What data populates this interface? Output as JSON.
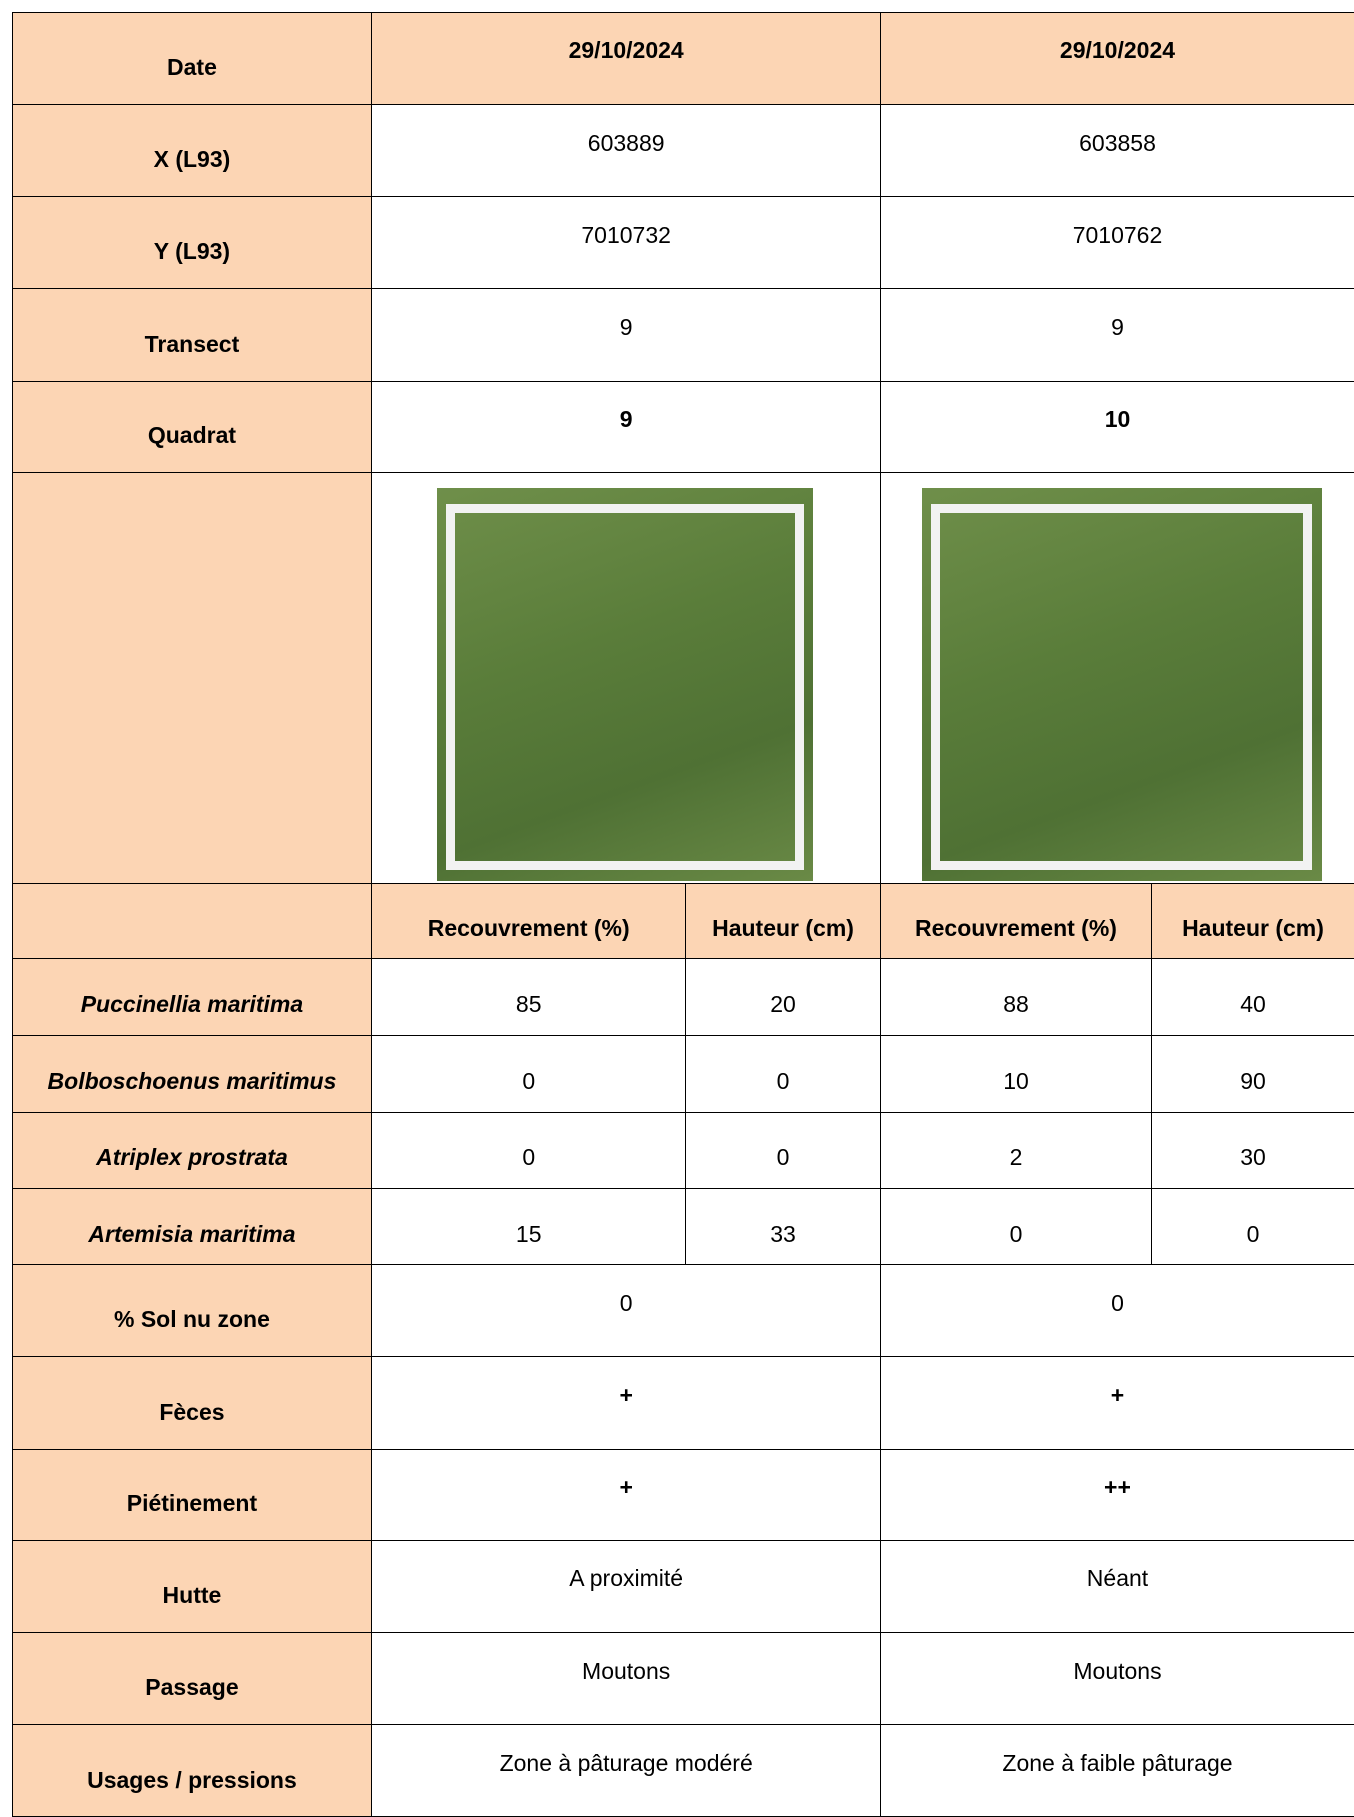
{
  "table": {
    "rows": [
      {
        "label": "Date",
        "values": [
          "29/10/2024",
          "29/10/2024"
        ]
      },
      {
        "label": "X (L93)",
        "values": [
          603889,
          603858
        ]
      },
      {
        "label": "Y (L93)",
        "values": [
          7010732,
          7010762
        ]
      },
      {
        "label": "Transect",
        "values": [
          9,
          9
        ]
      },
      {
        "label": "Quadrat",
        "values": [
          9,
          10
        ]
      }
    ],
    "subheaders": [
      "Recouvrement (%)",
      "Hauteur (cm)",
      "Recouvrement (%)",
      "Hauteur (cm)"
    ],
    "species": [
      {
        "name": "Puccinellia maritima",
        "values": [
          85,
          20,
          88,
          40
        ]
      },
      {
        "name": "Bolboschoenus maritimus",
        "values": [
          0,
          0,
          10,
          90
        ]
      },
      {
        "name": "Atriplex prostrata",
        "values": [
          0,
          0,
          2,
          30
        ]
      },
      {
        "name": "Artemisia maritima",
        "values": [
          15,
          33,
          0,
          0
        ]
      }
    ],
    "observations": [
      {
        "label": "% Sol nu zone",
        "values": [
          0,
          0
        ]
      },
      {
        "label": "Fèces",
        "values": [
          "+",
          "+"
        ]
      },
      {
        "label": "Piétinement",
        "values": [
          "+",
          "++"
        ]
      },
      {
        "label": "Hutte",
        "values": [
          "A proximité",
          "Néant"
        ]
      },
      {
        "label": "Passage",
        "values": [
          "Moutons",
          "Moutons"
        ]
      },
      {
        "label": "Usages / pressions",
        "values": [
          "Zone à pâturage modéré",
          "Zone à faible pâturage"
        ]
      }
    ]
  }
}
